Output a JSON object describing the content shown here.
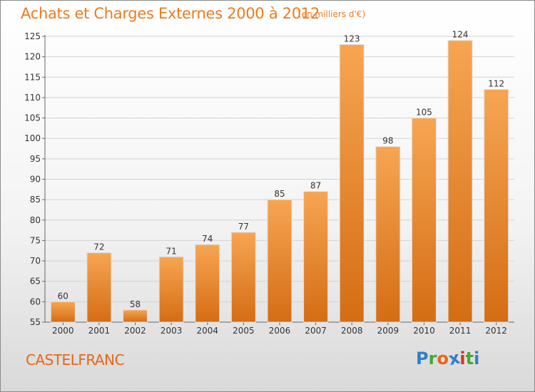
{
  "header": {
    "title": "Achats et Charges Externes 2000 à 2012",
    "subtitle": "(en milliers d'€)"
  },
  "footer": {
    "place": "CASTELFRANC",
    "logo": {
      "letters": [
        "P",
        "r",
        "o",
        "x",
        "i",
        "t",
        "i"
      ],
      "colors": [
        "#2f7fc8",
        "#43a83a",
        "#e8661a",
        "#2f7fc8",
        "#d7331f",
        "#43a83a",
        "#2f7fc8"
      ]
    }
  },
  "colors": {
    "bar_top": "#f7a552",
    "bar_bottom": "#d46d14",
    "text_accent": "#f07a1e"
  },
  "chart_data": {
    "type": "bar",
    "categories": [
      "2000",
      "2001",
      "2002",
      "2003",
      "2004",
      "2005",
      "2006",
      "2007",
      "2008",
      "2009",
      "2010",
      "2011",
      "2012"
    ],
    "values": [
      60,
      72,
      58,
      71,
      74,
      77,
      85,
      87,
      123,
      98,
      105,
      124,
      112
    ],
    "ylim": [
      55,
      125
    ],
    "yticks": [
      55,
      60,
      65,
      70,
      75,
      80,
      85,
      90,
      95,
      100,
      105,
      110,
      115,
      120,
      125
    ],
    "grid": true,
    "xlabel": "",
    "ylabel": ""
  }
}
